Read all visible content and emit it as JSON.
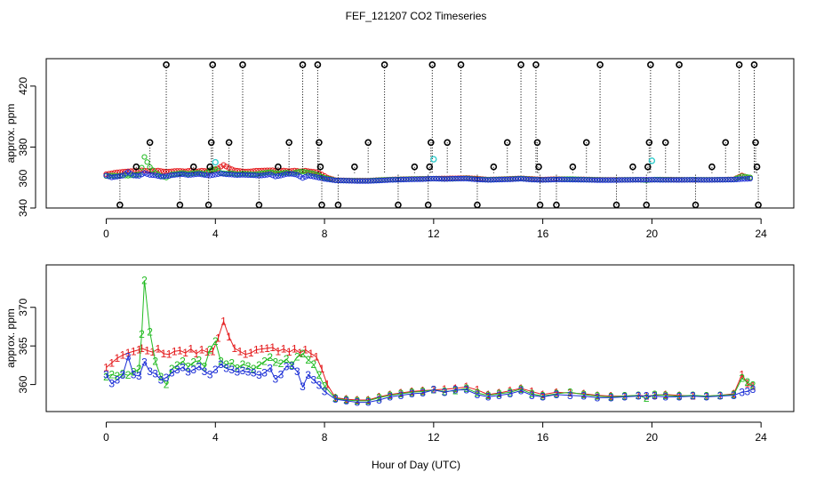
{
  "title": "FEF_121207  CO2 Timeseries",
  "xlabel": "Hour of Day (UTC)",
  "colors": {
    "series1": "#e41a1c",
    "series2": "#22bb22",
    "series3": "#1c2fd6",
    "cyan": "#33cccc",
    "black": "#000000"
  },
  "chart_data": [
    {
      "type": "scatter",
      "title": "FEF_121207  CO2 Timeseries",
      "xlabel": "Hour of Day (UTC)",
      "ylabel": "approx. ppm",
      "xlim": [
        -2.2,
        25.2
      ],
      "ylim": [
        340,
        438
      ],
      "xticks": [
        0,
        4,
        8,
        12,
        16,
        20,
        24
      ],
      "yticks": [
        340,
        380,
        420
      ],
      "ytick_labels": [
        "340",
        "380",
        "420"
      ],
      "extra_ytick_label": "360",
      "grid": false,
      "note": "raw samples with spike outliers (black circles with dotted drop lines)",
      "black_outliers": [
        {
          "x": 0.5,
          "y": 342
        },
        {
          "x": 1.1,
          "y": 367
        },
        {
          "x": 1.6,
          "y": 383
        },
        {
          "x": 2.2,
          "y": 434
        },
        {
          "x": 2.7,
          "y": 342
        },
        {
          "x": 3.2,
          "y": 367
        },
        {
          "x": 3.75,
          "y": 342
        },
        {
          "x": 3.8,
          "y": 367
        },
        {
          "x": 3.85,
          "y": 383
        },
        {
          "x": 3.9,
          "y": 434
        },
        {
          "x": 4.5,
          "y": 383
        },
        {
          "x": 5.0,
          "y": 434
        },
        {
          "x": 5.6,
          "y": 342
        },
        {
          "x": 6.3,
          "y": 367
        },
        {
          "x": 6.7,
          "y": 383
        },
        {
          "x": 7.2,
          "y": 434
        },
        {
          "x": 7.75,
          "y": 434
        },
        {
          "x": 7.8,
          "y": 383
        },
        {
          "x": 7.85,
          "y": 367
        },
        {
          "x": 7.9,
          "y": 342
        },
        {
          "x": 8.5,
          "y": 342
        },
        {
          "x": 9.1,
          "y": 367
        },
        {
          "x": 9.6,
          "y": 383
        },
        {
          "x": 10.2,
          "y": 434
        },
        {
          "x": 10.7,
          "y": 342
        },
        {
          "x": 11.3,
          "y": 367
        },
        {
          "x": 11.8,
          "y": 342
        },
        {
          "x": 11.85,
          "y": 367
        },
        {
          "x": 11.9,
          "y": 383
        },
        {
          "x": 11.95,
          "y": 434
        },
        {
          "x": 12.5,
          "y": 383
        },
        {
          "x": 13.0,
          "y": 434
        },
        {
          "x": 13.6,
          "y": 342
        },
        {
          "x": 14.2,
          "y": 367
        },
        {
          "x": 14.7,
          "y": 383
        },
        {
          "x": 15.2,
          "y": 434
        },
        {
          "x": 15.75,
          "y": 434
        },
        {
          "x": 15.8,
          "y": 383
        },
        {
          "x": 15.85,
          "y": 367
        },
        {
          "x": 15.9,
          "y": 342
        },
        {
          "x": 16.5,
          "y": 342
        },
        {
          "x": 17.1,
          "y": 367
        },
        {
          "x": 17.6,
          "y": 383
        },
        {
          "x": 18.1,
          "y": 434
        },
        {
          "x": 18.7,
          "y": 342
        },
        {
          "x": 19.3,
          "y": 367
        },
        {
          "x": 19.8,
          "y": 342
        },
        {
          "x": 19.85,
          "y": 367
        },
        {
          "x": 19.9,
          "y": 383
        },
        {
          "x": 19.95,
          "y": 434
        },
        {
          "x": 20.5,
          "y": 383
        },
        {
          "x": 21.0,
          "y": 434
        },
        {
          "x": 21.6,
          "y": 342
        },
        {
          "x": 22.2,
          "y": 367
        },
        {
          "x": 22.7,
          "y": 383
        },
        {
          "x": 23.2,
          "y": 434
        },
        {
          "x": 23.75,
          "y": 434
        },
        {
          "x": 23.8,
          "y": 383
        },
        {
          "x": 23.85,
          "y": 367
        },
        {
          "x": 23.9,
          "y": 342
        }
      ],
      "cyan_outliers": [
        {
          "x": 4.0,
          "y": 370
        },
        {
          "x": 12.0,
          "y": 372
        },
        {
          "x": 20.0,
          "y": 371
        }
      ]
    },
    {
      "type": "line",
      "title": "",
      "xlabel": "Hour of Day (UTC)",
      "ylabel": "approx. ppm",
      "xlim": [
        -2.2,
        25.2
      ],
      "ylim": [
        356.5,
        375.5
      ],
      "xticks": [
        0,
        4,
        8,
        12,
        16,
        20,
        24
      ],
      "yticks": [
        360,
        365,
        370
      ],
      "grid": false,
      "legend": "none",
      "series": [
        {
          "name": "1",
          "marker": "1",
          "x": [
            0.0,
            0.2,
            0.4,
            0.6,
            0.8,
            1.0,
            1.2,
            1.3,
            1.5,
            1.7,
            1.9,
            2.1,
            2.3,
            2.5,
            2.7,
            2.9,
            3.1,
            3.3,
            3.5,
            3.7,
            3.9,
            4.1,
            4.3,
            4.5,
            4.7,
            4.9,
            5.1,
            5.3,
            5.5,
            5.7,
            5.9,
            6.1,
            6.3,
            6.5,
            6.7,
            6.9,
            7.1,
            7.3,
            7.5,
            7.7,
            7.9,
            8.1,
            8.4,
            8.8,
            9.2,
            9.6,
            10.0,
            10.4,
            10.8,
            11.2,
            11.6,
            12.0,
            12.4,
            12.8,
            13.2,
            13.6,
            14.0,
            14.4,
            14.8,
            15.2,
            15.6,
            16.0,
            16.5,
            17.0,
            17.5,
            18.0,
            18.5,
            19.0,
            19.5,
            19.8,
            20.1,
            20.5,
            21.0,
            21.5,
            22.0,
            22.5,
            23.0,
            23.3,
            23.5,
            23.7
          ],
          "values": [
            362.2,
            362.8,
            363.4,
            363.8,
            364.1,
            364.3,
            364.5,
            364.7,
            364.4,
            364.2,
            364.6,
            364.0,
            363.9,
            364.3,
            364.4,
            364.1,
            364.6,
            364.0,
            364.5,
            364.2,
            364.3,
            366.0,
            368.2,
            366.2,
            364.7,
            364.3,
            363.9,
            364.1,
            364.5,
            364.6,
            364.7,
            364.8,
            364.3,
            364.6,
            364.2,
            364.6,
            364.1,
            364.5,
            364.0,
            363.6,
            362.0,
            360.0,
            358.3,
            358.1,
            358.0,
            358.0,
            358.4,
            358.7,
            358.9,
            359.1,
            359.2,
            359.3,
            359.4,
            359.5,
            359.7,
            359.3,
            358.7,
            358.9,
            359.2,
            359.5,
            359.1,
            358.7,
            359.0,
            358.9,
            358.8,
            358.6,
            358.5,
            358.5,
            358.6,
            358.5,
            358.6,
            358.7,
            358.6,
            358.5,
            358.5,
            358.6,
            358.8,
            361.3,
            360.1,
            359.8
          ]
        },
        {
          "name": "2",
          "marker": "2",
          "x": [
            0.0,
            0.2,
            0.4,
            0.6,
            0.8,
            1.0,
            1.2,
            1.3,
            1.4,
            1.6,
            1.8,
            2.0,
            2.2,
            2.4,
            2.6,
            2.8,
            3.0,
            3.2,
            3.4,
            3.6,
            3.8,
            4.0,
            4.2,
            4.4,
            4.6,
            4.8,
            5.0,
            5.2,
            5.4,
            5.6,
            5.8,
            6.0,
            6.2,
            6.4,
            6.6,
            6.8,
            7.0,
            7.2,
            7.4,
            7.6,
            7.8,
            8.0,
            8.4,
            8.8,
            9.2,
            9.6,
            10.0,
            10.4,
            10.8,
            11.2,
            11.6,
            12.0,
            12.4,
            12.8,
            13.2,
            13.6,
            14.0,
            14.4,
            14.8,
            15.2,
            15.6,
            16.0,
            16.5,
            17.0,
            17.5,
            18.0,
            18.5,
            19.0,
            19.5,
            19.8,
            20.1,
            20.5,
            21.0,
            21.5,
            22.0,
            22.5,
            23.0,
            23.3,
            23.5,
            23.7
          ],
          "values": [
            361.0,
            361.3,
            361.1,
            361.4,
            361.2,
            361.6,
            362.0,
            366.5,
            373.5,
            366.8,
            363.0,
            361.0,
            360.0,
            362.0,
            362.5,
            363.0,
            362.3,
            362.9,
            363.1,
            362.3,
            364.5,
            365.6,
            363.0,
            362.6,
            362.8,
            362.1,
            362.6,
            362.4,
            362.0,
            362.5,
            363.0,
            363.5,
            362.9,
            362.7,
            363.3,
            362.5,
            363.6,
            364.0,
            363.2,
            362.6,
            361.2,
            359.8,
            358.2,
            358.0,
            357.9,
            357.9,
            358.3,
            358.6,
            358.8,
            359.0,
            359.1,
            359.3,
            359.1,
            359.2,
            359.5,
            358.9,
            358.6,
            358.8,
            359.0,
            359.4,
            358.8,
            358.5,
            358.8,
            359.0,
            358.7,
            358.5,
            358.4,
            358.5,
            358.6,
            358.2,
            358.7,
            358.6,
            358.5,
            358.6,
            358.5,
            358.6,
            358.7,
            360.8,
            360.3,
            359.9
          ]
        },
        {
          "name": "3",
          "marker": "3",
          "x": [
            0.0,
            0.2,
            0.4,
            0.6,
            0.8,
            1.0,
            1.2,
            1.4,
            1.6,
            1.8,
            2.0,
            2.2,
            2.4,
            2.6,
            2.8,
            3.0,
            3.2,
            3.4,
            3.6,
            3.8,
            4.0,
            4.2,
            4.4,
            4.6,
            4.8,
            5.0,
            5.2,
            5.4,
            5.6,
            5.8,
            6.0,
            6.2,
            6.4,
            6.6,
            6.8,
            7.0,
            7.2,
            7.4,
            7.6,
            7.8,
            8.0,
            8.4,
            8.8,
            9.2,
            9.6,
            10.0,
            10.4,
            10.8,
            11.2,
            11.6,
            12.0,
            12.4,
            12.8,
            13.2,
            13.6,
            14.0,
            14.4,
            14.8,
            15.2,
            15.6,
            16.0,
            16.5,
            17.0,
            17.5,
            18.0,
            18.5,
            19.0,
            19.5,
            19.8,
            20.1,
            20.5,
            21.0,
            21.5,
            22.0,
            22.5,
            23.0,
            23.3,
            23.5,
            23.7
          ],
          "values": [
            361.3,
            360.1,
            360.6,
            361.2,
            363.6,
            361.3,
            361.1,
            362.9,
            361.7,
            361.4,
            360.6,
            360.9,
            361.5,
            361.9,
            362.2,
            361.6,
            361.9,
            362.3,
            361.7,
            361.3,
            361.9,
            362.6,
            362.1,
            361.9,
            361.6,
            361.8,
            361.6,
            361.5,
            361.2,
            361.5,
            362.1,
            360.7,
            361.3,
            362.3,
            362.4,
            361.7,
            359.7,
            361.2,
            360.6,
            359.9,
            359.1,
            358.1,
            357.9,
            357.7,
            357.7,
            358.0,
            358.4,
            358.6,
            358.8,
            358.9,
            359.3,
            359.0,
            359.3,
            359.3,
            358.7,
            358.4,
            358.6,
            358.8,
            359.2,
            358.6,
            358.4,
            358.7,
            358.6,
            358.5,
            358.3,
            358.3,
            358.4,
            358.5,
            358.5,
            358.5,
            358.4,
            358.4,
            358.5,
            358.4,
            358.5,
            358.6,
            359.0,
            359.1,
            359.4
          ]
        }
      ]
    }
  ]
}
